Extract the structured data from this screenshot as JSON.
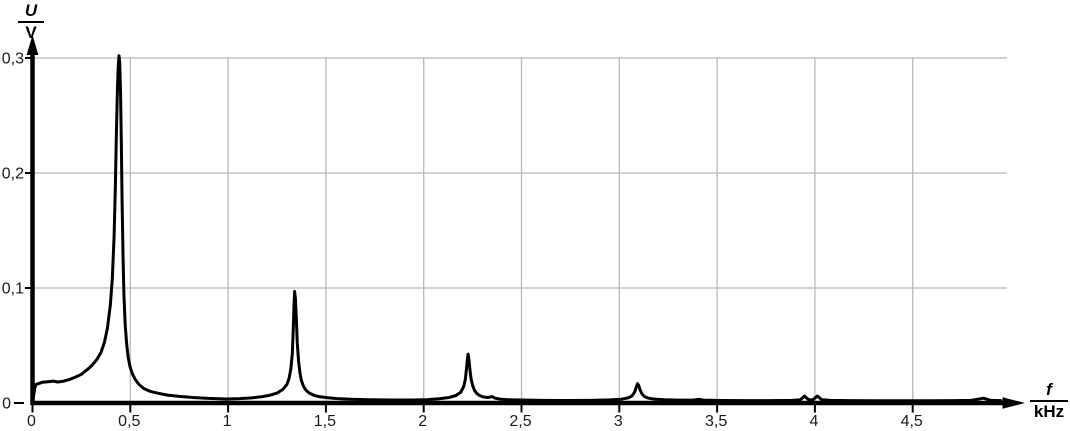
{
  "axis_labels": {
    "y_numerator": "U",
    "y_denominator": "V",
    "x_numerator": "f",
    "x_denominator": "kHz"
  },
  "colors": {
    "background": "#ffffff",
    "curve": "#000000",
    "axis": "#000000",
    "grid": "#b8b8b8",
    "tick_label": "#1a1a1a"
  },
  "chart_data": {
    "type": "line",
    "title": "",
    "xlabel": "f / kHz",
    "ylabel": "U / V",
    "xlim": [
      0,
      5.12
    ],
    "ylim": [
      0,
      0.315
    ],
    "grid": "on",
    "legend": "none",
    "x_ticks": [
      {
        "v": 0,
        "label": "0"
      },
      {
        "v": 0.5,
        "label": "0,5"
      },
      {
        "v": 1,
        "label": "1"
      },
      {
        "v": 1.5,
        "label": "1,5"
      },
      {
        "v": 2,
        "label": "2"
      },
      {
        "v": 2.5,
        "label": "2,5"
      },
      {
        "v": 3,
        "label": "3"
      },
      {
        "v": 3.5,
        "label": "3,5"
      },
      {
        "v": 4,
        "label": "4"
      },
      {
        "v": 4.5,
        "label": "4,5"
      }
    ],
    "y_ticks": [
      {
        "v": 0,
        "label": "0"
      },
      {
        "v": 0.1,
        "label": "0,1"
      },
      {
        "v": 0.2,
        "label": "0,2"
      },
      {
        "v": 0.3,
        "label": "0,3"
      }
    ],
    "grid_vertical_values": [
      0.5,
      1,
      1.5,
      2,
      2.5,
      3,
      3.5,
      4,
      4.5
    ],
    "grid_horizontal_values": [
      0.1,
      0.2,
      0.3
    ],
    "peaks": [
      {
        "f_kHz": 0.44,
        "U_V": 0.302
      },
      {
        "f_kHz": 1.33,
        "U_V": 0.098
      },
      {
        "f_kHz": 2.22,
        "U_V": 0.043
      },
      {
        "f_kHz": 3.09,
        "U_V": 0.017
      },
      {
        "f_kHz": 3.95,
        "U_V": 0.006
      },
      {
        "f_kHz": 4.01,
        "U_V": 0.006
      },
      {
        "f_kHz": 4.86,
        "U_V": 0.004
      }
    ],
    "curve": [
      [
        0,
        0
      ],
      [
        0.012,
        0.013
      ],
      [
        0.018,
        0.0162
      ],
      [
        0.05,
        0.018
      ],
      [
        0.08,
        0.0185
      ],
      [
        0.105,
        0.019
      ],
      [
        0.13,
        0.0183
      ],
      [
        0.16,
        0.019
      ],
      [
        0.19,
        0.0205
      ],
      [
        0.22,
        0.0225
      ],
      [
        0.25,
        0.025
      ],
      [
        0.28,
        0.029
      ],
      [
        0.305,
        0.033
      ],
      [
        0.33,
        0.038
      ],
      [
        0.35,
        0.044
      ],
      [
        0.368,
        0.053
      ],
      [
        0.383,
        0.065
      ],
      [
        0.398,
        0.085
      ],
      [
        0.408,
        0.108
      ],
      [
        0.417,
        0.145
      ],
      [
        0.424,
        0.19
      ],
      [
        0.429,
        0.235
      ],
      [
        0.434,
        0.272
      ],
      [
        0.438,
        0.292
      ],
      [
        0.442,
        0.302
      ],
      [
        0.446,
        0.296
      ],
      [
        0.45,
        0.272
      ],
      [
        0.454,
        0.228
      ],
      [
        0.458,
        0.175
      ],
      [
        0.463,
        0.125
      ],
      [
        0.468,
        0.092
      ],
      [
        0.474,
        0.068
      ],
      [
        0.481,
        0.052
      ],
      [
        0.489,
        0.04
      ],
      [
        0.498,
        0.032
      ],
      [
        0.51,
        0.0255
      ],
      [
        0.525,
        0.0205
      ],
      [
        0.545,
        0.016
      ],
      [
        0.57,
        0.0125
      ],
      [
        0.6,
        0.0102
      ],
      [
        0.64,
        0.0085
      ],
      [
        0.69,
        0.0069
      ],
      [
        0.75,
        0.0057
      ],
      [
        0.82,
        0.0048
      ],
      [
        0.9,
        0.004
      ],
      [
        0.99,
        0.0035
      ],
      [
        1.06,
        0.0038
      ],
      [
        1.12,
        0.0044
      ],
      [
        1.17,
        0.0054
      ],
      [
        1.21,
        0.0066
      ],
      [
        1.25,
        0.0086
      ],
      [
        1.28,
        0.0118
      ],
      [
        1.3,
        0.016
      ],
      [
        1.312,
        0.0215
      ],
      [
        1.321,
        0.03
      ],
      [
        1.328,
        0.043
      ],
      [
        1.333,
        0.062
      ],
      [
        1.337,
        0.085
      ],
      [
        1.34,
        0.097
      ],
      [
        1.344,
        0.091
      ],
      [
        1.349,
        0.072
      ],
      [
        1.354,
        0.052
      ],
      [
        1.36,
        0.037
      ],
      [
        1.367,
        0.0265
      ],
      [
        1.375,
        0.0195
      ],
      [
        1.385,
        0.0148
      ],
      [
        1.398,
        0.0112
      ],
      [
        1.415,
        0.0086
      ],
      [
        1.44,
        0.0066
      ],
      [
        1.47,
        0.0054
      ],
      [
        1.51,
        0.0045
      ],
      [
        1.56,
        0.0038
      ],
      [
        1.63,
        0.0032
      ],
      [
        1.72,
        0.0028
      ],
      [
        1.83,
        0.0026
      ],
      [
        1.95,
        0.0026
      ],
      [
        2.02,
        0.003
      ],
      [
        2.08,
        0.0037
      ],
      [
        2.13,
        0.0048
      ],
      [
        2.165,
        0.0065
      ],
      [
        2.19,
        0.0095
      ],
      [
        2.205,
        0.0145
      ],
      [
        2.213,
        0.021
      ],
      [
        2.219,
        0.03
      ],
      [
        2.224,
        0.039
      ],
      [
        2.227,
        0.0425
      ],
      [
        2.231,
        0.038
      ],
      [
        2.236,
        0.0295
      ],
      [
        2.242,
        0.0215
      ],
      [
        2.25,
        0.0152
      ],
      [
        2.259,
        0.0112
      ],
      [
        2.27,
        0.0085
      ],
      [
        2.285,
        0.0066
      ],
      [
        2.305,
        0.0052
      ],
      [
        2.33,
        0.0048
      ],
      [
        2.35,
        0.0056
      ],
      [
        2.365,
        0.0042
      ],
      [
        2.39,
        0.0034
      ],
      [
        2.43,
        0.0029
      ],
      [
        2.5,
        0.0026
      ],
      [
        2.6,
        0.0023
      ],
      [
        2.72,
        0.0022
      ],
      [
        2.85,
        0.0023
      ],
      [
        2.95,
        0.0027
      ],
      [
        3.01,
        0.0033
      ],
      [
        3.045,
        0.0044
      ],
      [
        3.065,
        0.0062
      ],
      [
        3.078,
        0.0095
      ],
      [
        3.087,
        0.0138
      ],
      [
        3.093,
        0.0168
      ],
      [
        3.099,
        0.0152
      ],
      [
        3.107,
        0.0112
      ],
      [
        3.117,
        0.0076
      ],
      [
        3.13,
        0.0055
      ],
      [
        3.15,
        0.0042
      ],
      [
        3.18,
        0.0034
      ],
      [
        3.23,
        0.0028
      ],
      [
        3.3,
        0.0025
      ],
      [
        3.38,
        0.0026
      ],
      [
        3.405,
        0.0032
      ],
      [
        3.43,
        0.0025
      ],
      [
        3.52,
        0.0022
      ],
      [
        3.64,
        0.0021
      ],
      [
        3.77,
        0.0021
      ],
      [
        3.88,
        0.0023
      ],
      [
        3.925,
        0.0027
      ],
      [
        3.947,
        0.006
      ],
      [
        3.968,
        0.0028
      ],
      [
        3.99,
        0.0029
      ],
      [
        4.013,
        0.006
      ],
      [
        4.036,
        0.0028
      ],
      [
        4.08,
        0.0023
      ],
      [
        4.18,
        0.0021
      ],
      [
        4.3,
        0.002
      ],
      [
        4.45,
        0.002
      ],
      [
        4.6,
        0.002
      ],
      [
        4.72,
        0.0021
      ],
      [
        4.8,
        0.0023
      ],
      [
        4.862,
        0.0042
      ],
      [
        4.9,
        0.0023
      ],
      [
        4.95,
        0.0021
      ]
    ]
  }
}
